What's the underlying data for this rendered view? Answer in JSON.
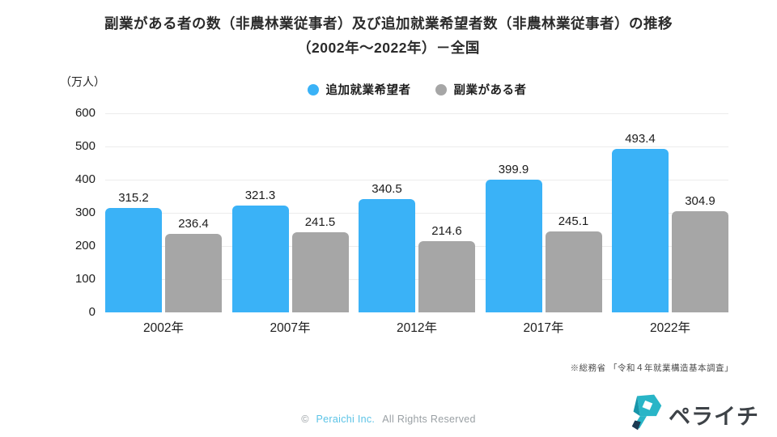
{
  "title": {
    "line1": "副業がある者の数（非農林業従事者）及び追加就業希望者数（非農林業従事者）の推移",
    "line2": "（2002年～2022年）－全国"
  },
  "unit_label": "（万人）",
  "chart_data": {
    "type": "bar",
    "categories": [
      "2002年",
      "2007年",
      "2012年",
      "2017年",
      "2022年"
    ],
    "series": [
      {
        "name": "追加就業希望者",
        "color": "#3ab2f7",
        "values": [
          315.2,
          321.3,
          340.5,
          399.9,
          493.4
        ]
      },
      {
        "name": "副業がある者",
        "color": "#a6a6a6",
        "values": [
          236.4,
          241.5,
          214.6,
          245.1,
          304.9
        ]
      }
    ],
    "title": "副業がある者の数（非農林業従事者）及び追加就業希望者数（非農林業従事者）の推移（2002年～2022年）－全国",
    "xlabel": "",
    "ylabel": "（万人）",
    "ylim": [
      0,
      600
    ],
    "yticks": [
      0,
      100,
      200,
      300,
      400,
      500,
      600
    ],
    "grid": true,
    "legend_position": "top-center",
    "value_labels": true
  },
  "source_note": "※総務省 「令和４年就業構造基本調査」",
  "footer": {
    "copyright_symbol": "©",
    "company": "Peraichi Inc.",
    "rights_text": "All Rights Reserved",
    "logo_text": "ペライチ"
  },
  "colors": {
    "series_blue": "#3ab2f7",
    "series_gray": "#a6a6a6",
    "gridline": "#ececec",
    "link_blue": "#5bc3e6",
    "muted_gray": "#9aa0a4",
    "logo_teal": "#29b5c7",
    "logo_teal_dark": "#1795aa",
    "logo_navy": "#1b3a52",
    "logo_text_color": "#3d4247"
  }
}
